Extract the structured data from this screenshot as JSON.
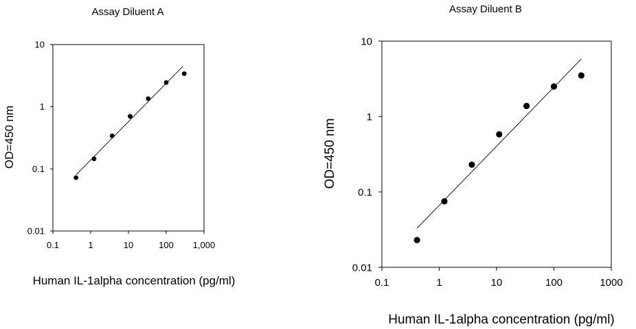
{
  "chart_data": [
    {
      "type": "scatter",
      "title": "Assay Diluent A",
      "xlabel": "Human IL-1alpha concentration (pg/ml)",
      "ylabel": "OD=450 nm",
      "x_scale": "log",
      "y_scale": "log",
      "xlim": [
        0.1,
        1000
      ],
      "ylim": [
        0.01,
        10
      ],
      "x_ticks": [
        "0.1",
        "1",
        "10",
        "100",
        "1,000"
      ],
      "y_ticks": [
        "0.01",
        "0.1",
        "1",
        "10"
      ],
      "grid": false,
      "legend": "none",
      "series": [
        {
          "x": [
            0.41,
            1.23,
            3.7,
            11.1,
            33.3,
            100,
            300
          ],
          "y": [
            0.072,
            0.145,
            0.34,
            0.7,
            1.35,
            2.45,
            3.4
          ]
        }
      ],
      "fit_line": {
        "x": [
          0.41,
          270
        ],
        "y": [
          0.08,
          4.4
        ]
      }
    },
    {
      "type": "scatter",
      "title": "Assay Diluent B",
      "xlabel": "Human IL-1alpha concentration (pg/ml)",
      "ylabel": "OD=450 nm",
      "x_scale": "log",
      "y_scale": "log",
      "xlim": [
        0.1,
        1000
      ],
      "ylim": [
        0.01,
        10
      ],
      "x_ticks": [
        "0.1",
        "1",
        "10",
        "100",
        "1000"
      ],
      "y_ticks": [
        "0.01",
        "0.1",
        "1",
        "10"
      ],
      "grid": false,
      "legend": "none",
      "series": [
        {
          "x": [
            0.41,
            1.23,
            3.7,
            11.1,
            33.3,
            100,
            300
          ],
          "y": [
            0.023,
            0.075,
            0.23,
            0.58,
            1.38,
            2.5,
            3.5
          ]
        }
      ],
      "fit_line": {
        "x": [
          0.41,
          300
        ],
        "y": [
          0.033,
          5.8
        ]
      }
    }
  ]
}
